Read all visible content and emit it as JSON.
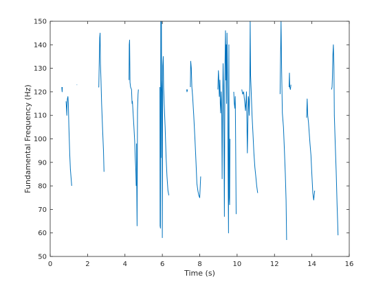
{
  "chart_data": {
    "type": "line",
    "xlabel": "Time (s)",
    "ylabel": "Fundamental Frequency (Hz)",
    "xlim": [
      0,
      16
    ],
    "ylim": [
      50,
      150
    ],
    "xticks": [
      0,
      2,
      4,
      6,
      8,
      10,
      12,
      14,
      16
    ],
    "yticks": [
      50,
      60,
      70,
      80,
      90,
      100,
      110,
      120,
      130,
      140,
      150
    ],
    "grid": false,
    "line_color": "#0072BD",
    "series": [
      {
        "segments": [
          [
            [
              0.62,
              122
            ],
            [
              0.63,
              121
            ],
            [
              0.64,
              120
            ],
            [
              0.65,
              122
            ]
          ],
          [
            [
              0.85,
              116
            ],
            [
              0.87,
              113
            ],
            [
              0.89,
              110
            ],
            [
              0.9,
              114
            ],
            [
              0.92,
              117
            ],
            [
              0.95,
              118
            ],
            [
              0.97,
              115
            ],
            [
              1.0,
              105
            ],
            [
              1.05,
              93
            ],
            [
              1.08,
              87
            ],
            [
              1.12,
              83
            ],
            [
              1.15,
              80
            ]
          ],
          [
            [
              1.42,
              123
            ],
            [
              1.44,
              123
            ]
          ],
          [
            [
              2.58,
              122
            ],
            [
              2.6,
              122
            ],
            [
              2.62,
              130
            ],
            [
              2.65,
              143
            ],
            [
              2.67,
              145
            ],
            [
              2.69,
              132
            ],
            [
              2.72,
              125
            ],
            [
              2.75,
              115
            ],
            [
              2.8,
              105
            ],
            [
              2.85,
              95
            ],
            [
              2.88,
              86
            ]
          ],
          [
            [
              4.22,
              125
            ],
            [
              4.23,
              140
            ],
            [
              4.25,
              142
            ],
            [
              4.27,
              124
            ],
            [
              4.3,
              122
            ],
            [
              4.35,
              121
            ],
            [
              4.38,
              115
            ],
            [
              4.4,
              116
            ],
            [
              4.43,
              112
            ],
            [
              4.48,
              105
            ],
            [
              4.52,
              99
            ],
            [
              4.55,
              92
            ],
            [
              4.58,
              87
            ],
            [
              4.6,
              80
            ]
          ],
          [
            [
              4.62,
              98
            ],
            [
              4.63,
              80
            ],
            [
              4.65,
              63
            ],
            [
              4.67,
              112
            ],
            [
              4.7,
              119
            ],
            [
              4.72,
              121
            ]
          ],
          [
            [
              5.87,
              122
            ],
            [
              5.88,
              63
            ],
            [
              5.9,
              62
            ],
            [
              5.92,
              150
            ],
            [
              5.93,
              92
            ],
            [
              5.95,
              150
            ],
            [
              5.96,
              125
            ],
            [
              5.98,
              120
            ],
            [
              6.0,
              58
            ],
            [
              6.02,
              131
            ],
            [
              6.05,
              135
            ],
            [
              6.07,
              122
            ],
            [
              6.1,
              115
            ],
            [
              6.15,
              105
            ],
            [
              6.2,
              92
            ],
            [
              6.25,
              84
            ],
            [
              6.3,
              78
            ],
            [
              6.35,
              76
            ]
          ],
          [
            [
              7.3,
              121
            ],
            [
              7.32,
              120
            ],
            [
              7.35,
              121
            ]
          ],
          [
            [
              7.5,
              122
            ],
            [
              7.52,
              133
            ],
            [
              7.55,
              130
            ],
            [
              7.58,
              122
            ],
            [
              7.62,
              118
            ],
            [
              7.68,
              110
            ],
            [
              7.75,
              99
            ],
            [
              7.8,
              90
            ],
            [
              7.85,
              81
            ],
            [
              7.9,
              78
            ],
            [
              7.95,
              76
            ],
            [
              8.0,
              75
            ],
            [
              8.05,
              84
            ]
          ],
          [
            [
              8.97,
              121
            ],
            [
              9.0,
              129
            ],
            [
              9.02,
              126
            ],
            [
              9.05,
              118
            ],
            [
              9.08,
              125
            ],
            [
              9.1,
              115
            ],
            [
              9.12,
              111
            ],
            [
              9.15,
              120
            ],
            [
              9.18,
              110
            ],
            [
              9.2,
              83
            ],
            [
              9.22,
              110
            ],
            [
              9.25,
              132
            ],
            [
              9.28,
              120
            ],
            [
              9.32,
              67
            ],
            [
              9.35,
              130
            ],
            [
              9.38,
              146
            ],
            [
              9.4,
              125
            ],
            [
              9.42,
              140
            ],
            [
              9.44,
              115
            ],
            [
              9.46,
              145
            ],
            [
              9.48,
              133
            ],
            [
              9.5,
              115
            ],
            [
              9.52,
              85
            ],
            [
              9.54,
              60
            ],
            [
              9.56,
              140
            ],
            [
              9.58,
              75
            ],
            [
              9.6,
              72
            ],
            [
              9.62,
              100
            ]
          ],
          [
            [
              9.82,
              120
            ],
            [
              9.85,
              115
            ],
            [
              9.88,
              113
            ],
            [
              9.9,
              118
            ],
            [
              9.92,
              100
            ],
            [
              9.94,
              80
            ],
            [
              9.95,
              68
            ]
          ],
          [
            [
              10.25,
              121
            ],
            [
              10.3,
              119
            ],
            [
              10.35,
              120
            ],
            [
              10.4,
              116
            ],
            [
              10.45,
              112
            ],
            [
              10.5,
              120
            ],
            [
              10.55,
              94
            ],
            [
              10.6,
              118
            ],
            [
              10.62,
              117
            ],
            [
              10.65,
              110
            ],
            [
              10.68,
              125
            ],
            [
              10.7,
              150
            ],
            [
              10.72,
              127
            ],
            [
              10.75,
              121
            ],
            [
              10.8,
              110
            ],
            [
              10.85,
              102
            ],
            [
              10.9,
              94
            ],
            [
              10.95,
              88
            ],
            [
              11.0,
              84
            ],
            [
              11.05,
              80
            ],
            [
              11.1,
              77
            ]
          ],
          [
            [
              12.3,
              119
            ],
            [
              12.32,
              131
            ],
            [
              12.35,
              150
            ],
            [
              12.38,
              130
            ],
            [
              12.42,
              111
            ],
            [
              12.48,
              105
            ],
            [
              12.53,
              95
            ],
            [
              12.58,
              85
            ],
            [
              12.62,
              74
            ],
            [
              12.65,
              57
            ]
          ],
          [
            [
              12.78,
              122
            ],
            [
              12.8,
              128
            ],
            [
              12.82,
              122
            ],
            [
              12.85,
              121
            ],
            [
              12.88,
              123
            ]
          ],
          [
            [
              13.72,
              109
            ],
            [
              13.75,
              117
            ],
            [
              13.78,
              110
            ],
            [
              13.82,
              107
            ],
            [
              13.9,
              98
            ],
            [
              13.95,
              93
            ],
            [
              14.0,
              85
            ],
            [
              14.05,
              77
            ],
            [
              14.1,
              74
            ],
            [
              14.15,
              78
            ]
          ],
          [
            [
              15.05,
              121
            ],
            [
              15.08,
              122
            ],
            [
              15.1,
              126
            ],
            [
              15.12,
              135
            ],
            [
              15.15,
              140
            ],
            [
              15.18,
              131
            ],
            [
              15.2,
              110
            ],
            [
              15.25,
              98
            ],
            [
              15.3,
              86
            ],
            [
              15.35,
              72
            ],
            [
              15.38,
              65
            ],
            [
              15.4,
              59
            ]
          ]
        ]
      }
    ]
  }
}
